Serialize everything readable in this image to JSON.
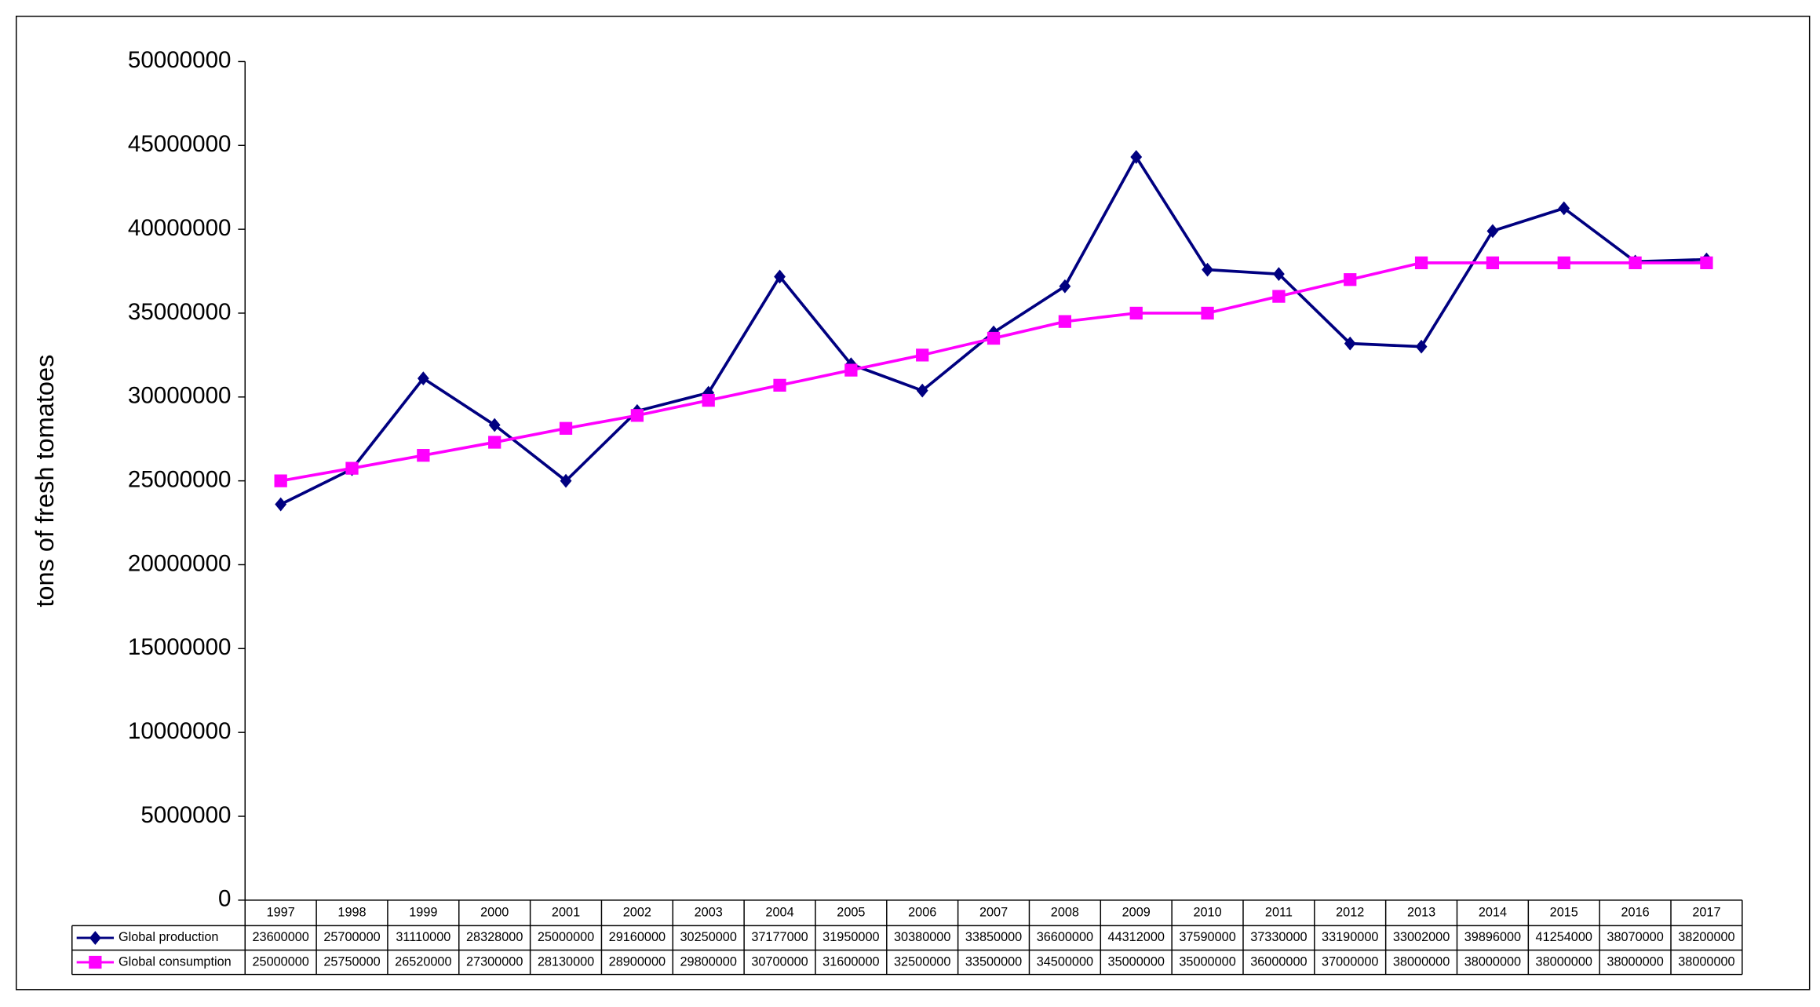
{
  "chart_data": {
    "type": "line",
    "y_label": "tons of fresh tomatoes",
    "categories": [
      "1997",
      "1998",
      "1999",
      "2000",
      "2001",
      "2002",
      "2003",
      "2004",
      "2005",
      "2006",
      "2007",
      "2008",
      "2009",
      "2010",
      "2011",
      "2012",
      "2013",
      "2014",
      "2015",
      "2016",
      "2017"
    ],
    "series": [
      {
        "name": "Global production",
        "color": "#000080",
        "marker": "diamond",
        "values": [
          23600000,
          25700000,
          31110000,
          28328000,
          25000000,
          29160000,
          30250000,
          37177000,
          31950000,
          30380000,
          33850000,
          36600000,
          44312000,
          37590000,
          37330000,
          33190000,
          33002000,
          39896000,
          41254000,
          38070000,
          38200000
        ]
      },
      {
        "name": "Global consumption",
        "color": "#ff00ff",
        "marker": "square",
        "values": [
          25000000,
          25750000,
          26520000,
          27300000,
          28130000,
          28900000,
          29800000,
          30700000,
          31600000,
          32500000,
          33500000,
          34500000,
          35000000,
          35000000,
          36000000,
          37000000,
          38000000,
          38000000,
          38000000,
          38000000,
          38000000
        ]
      }
    ],
    "ylim": [
      0,
      50000000
    ],
    "yticks": [
      0,
      5000000,
      10000000,
      15000000,
      20000000,
      25000000,
      30000000,
      35000000,
      40000000,
      45000000,
      50000000
    ],
    "grid": false
  }
}
